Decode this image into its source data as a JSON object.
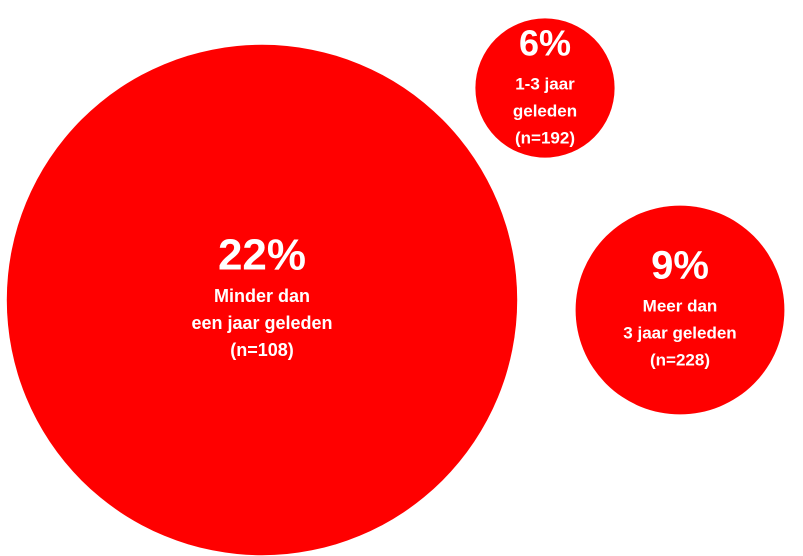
{
  "chart_data": {
    "type": "bubble",
    "categories": [
      [
        "Minder dan",
        "een jaar geleden"
      ],
      [
        "1-3 jaar",
        "geleden"
      ],
      [
        "Meer dan",
        "3 jaar geleden"
      ]
    ],
    "counts": [
      "(n=108)",
      "(n=192)",
      "(n=228)"
    ],
    "values": [
      22,
      6,
      9
    ],
    "value_labels": [
      "22%",
      "6%",
      "9%"
    ],
    "color": "#ff0000"
  }
}
